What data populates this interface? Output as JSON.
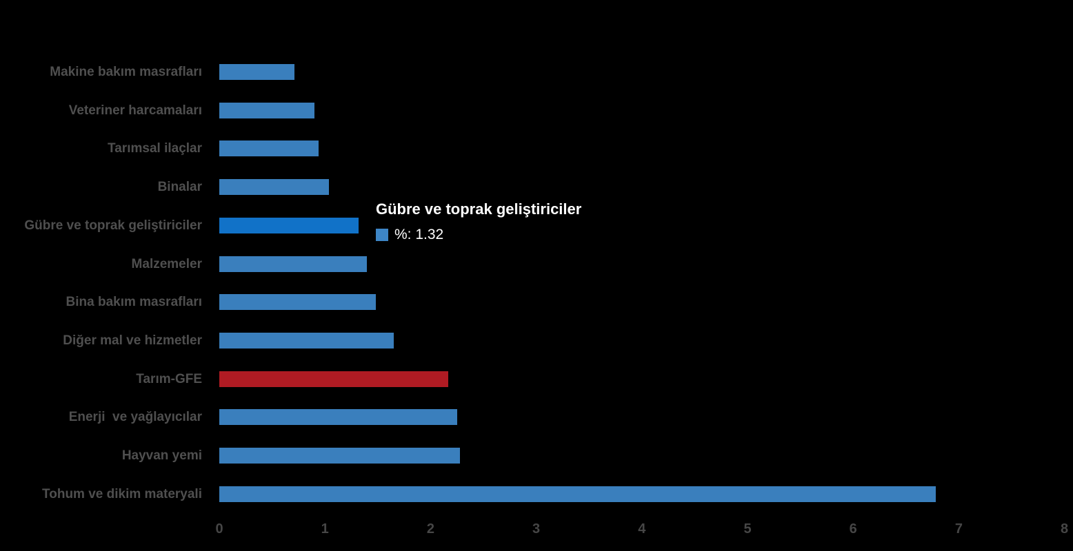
{
  "colors": {
    "background": "#000000",
    "bar_default": "#3a7fbd",
    "bar_hover_highlight": "#1172c8",
    "bar_accent_red": "#b01b23",
    "category_label_gray": "#4f4f4f",
    "axis_tick_gray": "#464646",
    "tooltip_text": "#ffffff",
    "tooltip_swatch_blue": "#3d85c6"
  },
  "tooltip": {
    "title": "Gübre ve toprak geliştiriciler",
    "series_label": "%",
    "value": "1.32",
    "value_text": "%: 1.32",
    "swatch_icon": "square-swatch-icon"
  },
  "chart_data": {
    "type": "bar",
    "orientation": "horizontal",
    "title": "",
    "xlabel": "",
    "ylabel": "",
    "xlim": [
      0,
      8
    ],
    "x_ticks": [
      0,
      1,
      2,
      3,
      4,
      5,
      6,
      7,
      8
    ],
    "grid": false,
    "legend": false,
    "series_name": "%",
    "categories": [
      "Makine bakım masrafları",
      "Veteriner harcamaları",
      "Tarımsal ilaçlar",
      "Binalar",
      "Gübre ve toprak geliştiriciler",
      "Malzemeler",
      "Bina bakım masrafları",
      "Diğer mal ve hizmetler",
      "Tarım-GFE",
      "Enerji  ve yağlayıcılar",
      "Hayvan yemi",
      "Tohum ve dikim materyali"
    ],
    "values": [
      0.71,
      0.9,
      0.94,
      1.04,
      1.32,
      1.4,
      1.48,
      1.65,
      2.17,
      2.25,
      2.28,
      6.78
    ],
    "point_roles": [
      "default",
      "default",
      "default",
      "default",
      "hover_highlight",
      "default",
      "default",
      "default",
      "accent_red",
      "default",
      "default",
      "default"
    ],
    "hovered_category": "Gübre ve toprak geliştiriciler",
    "hovered_value": 1.32
  }
}
